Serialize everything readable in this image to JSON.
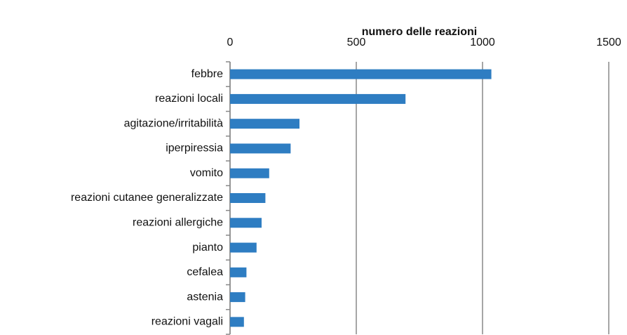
{
  "chart_data": {
    "type": "bar",
    "orientation": "horizontal",
    "x_label": "numero delle reazioni",
    "categories": [
      "febbre",
      "reazioni locali",
      "agitazione/irritabilità",
      "iperpiressia",
      "vomito",
      "reazioni cutanee generalizzate",
      "reazioni allergiche",
      "pianto",
      "cefalea",
      "astenia",
      "reazioni vagali"
    ],
    "values": [
      1035,
      695,
      275,
      240,
      155,
      140,
      125,
      105,
      65,
      60,
      55
    ],
    "color": "#2e7dc2",
    "xlim": [
      0,
      1500
    ],
    "xticks": [
      0,
      500,
      1000,
      1500
    ],
    "grid": true
  }
}
